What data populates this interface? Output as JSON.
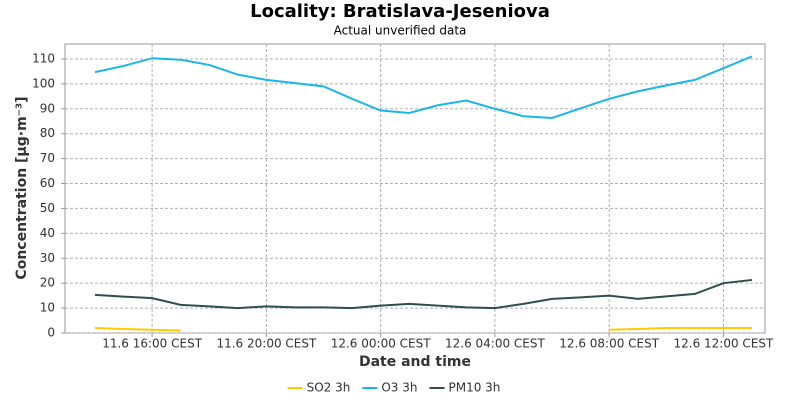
{
  "chart_data": {
    "type": "line",
    "title": "Locality: Bratislava-Jeseniova",
    "subtitle": "Actual unverified data",
    "x_label": "Date and time",
    "y_label": "Concentration [µg·m⁻³]",
    "categories": [
      null,
      null,
      "11.6 16:00 CEST",
      null,
      null,
      null,
      "11.6 20:00 CEST",
      null,
      null,
      null,
      "12.6 00:00 CEST",
      null,
      null,
      null,
      "12.6 04:00 CEST",
      null,
      null,
      null,
      "12.6 08:00 CEST",
      null,
      null,
      null,
      "12.6 12:00 CEST",
      null
    ],
    "series": [
      {
        "name": "SO2 3h",
        "color": "#ffcc00",
        "values": [
          2,
          1.6,
          1.3,
          1.0,
          null,
          null,
          null,
          null,
          null,
          null,
          null,
          null,
          null,
          null,
          null,
          null,
          null,
          null,
          1.3,
          1.6,
          2,
          2,
          2,
          2
        ]
      },
      {
        "name": "O3 3h",
        "color": "#1cb5ea",
        "values": [
          104.7,
          107.2,
          110.3,
          109.7,
          107.6,
          103.7,
          101.6,
          100.3,
          99,
          94,
          89.3,
          88.3,
          91.4,
          93.3,
          90,
          87,
          86.3,
          90.2,
          94,
          97,
          99.4,
          101.6,
          106.3,
          111
        ]
      },
      {
        "name": "PM10 3h",
        "color": "#2f4f4f",
        "values": [
          15.3,
          14.6,
          14,
          11.3,
          10.7,
          10,
          10.7,
          10.3,
          10.3,
          10,
          11,
          11.7,
          11,
          10.3,
          10,
          11.7,
          13.7,
          14.3,
          15,
          13.7,
          14.7,
          15.7,
          20,
          21.3
        ]
      }
    ],
    "ylim": [
      0,
      116
    ],
    "yticks": [
      0,
      10,
      20,
      30,
      40,
      50,
      60,
      70,
      80,
      90,
      100,
      110
    ],
    "grid": true,
    "legend": "bottom"
  }
}
